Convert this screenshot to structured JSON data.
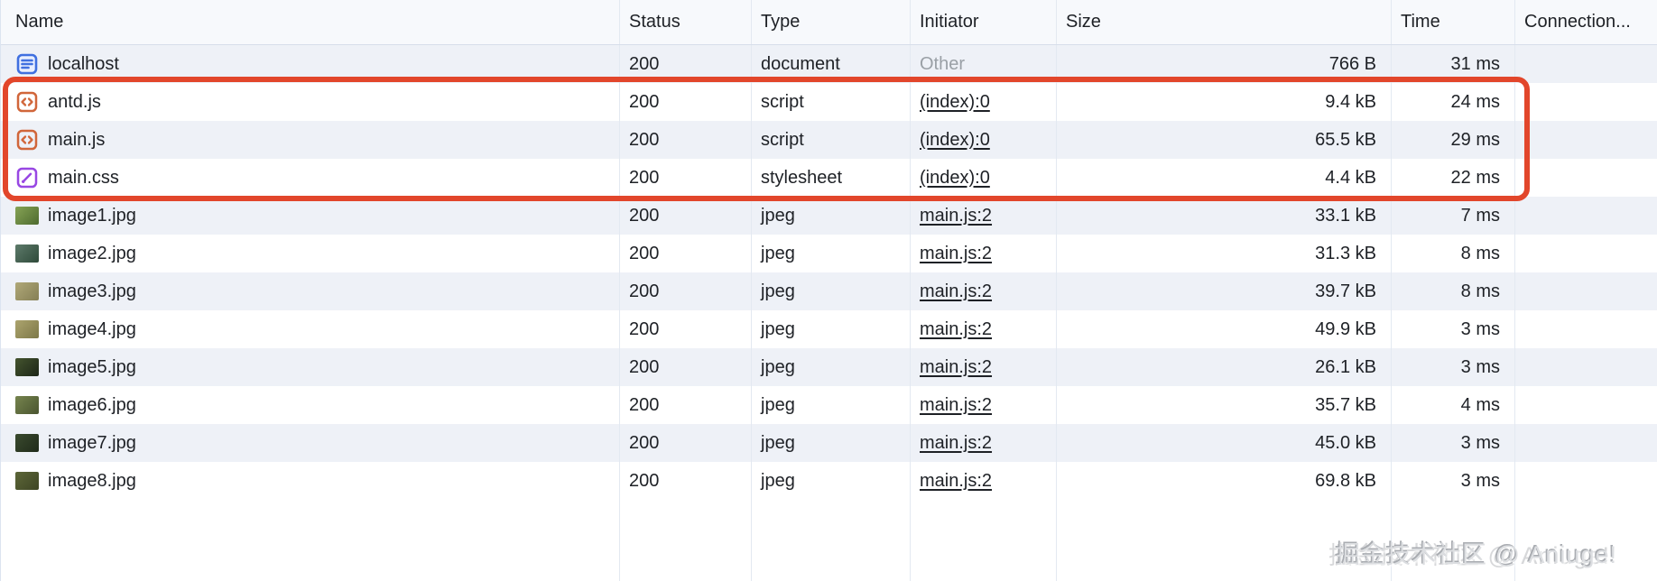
{
  "columns": [
    {
      "id": "name",
      "label": "Name"
    },
    {
      "id": "status",
      "label": "Status"
    },
    {
      "id": "type",
      "label": "Type"
    },
    {
      "id": "initiator",
      "label": "Initiator"
    },
    {
      "id": "size",
      "label": "Size"
    },
    {
      "id": "time",
      "label": "Time"
    },
    {
      "id": "connection",
      "label": "Connection..."
    }
  ],
  "rows": [
    {
      "name": "localhost",
      "icon": "document-icon",
      "status": "200",
      "type": "document",
      "initiator": "Other",
      "initiator_is_link": false,
      "size": "766 B",
      "time": "31 ms",
      "highlighted": false
    },
    {
      "name": "antd.js",
      "icon": "script-icon",
      "status": "200",
      "type": "script",
      "initiator": "(index):0",
      "initiator_is_link": true,
      "size": "9.4 kB",
      "time": "24 ms",
      "highlighted": true
    },
    {
      "name": "main.js",
      "icon": "script-icon",
      "status": "200",
      "type": "script",
      "initiator": "(index):0",
      "initiator_is_link": true,
      "size": "65.5 kB",
      "time": "29 ms",
      "highlighted": true
    },
    {
      "name": "main.css",
      "icon": "stylesheet-icon",
      "status": "200",
      "type": "stylesheet",
      "initiator": "(index):0",
      "initiator_is_link": true,
      "size": "4.4 kB",
      "time": "22 ms",
      "highlighted": true
    },
    {
      "name": "image1.jpg",
      "icon": "image-thumbnail",
      "thumb_colors": [
        "#86a355",
        "#4e6b2f"
      ],
      "status": "200",
      "type": "jpeg",
      "initiator": "main.js:2",
      "initiator_is_link": true,
      "size": "33.1 kB",
      "time": "7 ms",
      "highlighted": false
    },
    {
      "name": "image2.jpg",
      "icon": "image-thumbnail",
      "thumb_colors": [
        "#5d7a6a",
        "#2f4a3a"
      ],
      "status": "200",
      "type": "jpeg",
      "initiator": "main.js:2",
      "initiator_is_link": true,
      "size": "31.3 kB",
      "time": "8 ms",
      "highlighted": false
    },
    {
      "name": "image3.jpg",
      "icon": "image-thumbnail",
      "thumb_colors": [
        "#b0a878",
        "#857f55"
      ],
      "status": "200",
      "type": "jpeg",
      "initiator": "main.js:2",
      "initiator_is_link": true,
      "size": "39.7 kB",
      "time": "8 ms",
      "highlighted": false
    },
    {
      "name": "image4.jpg",
      "icon": "image-thumbnail",
      "thumb_colors": [
        "#aca46e",
        "#7d7848"
      ],
      "status": "200",
      "type": "jpeg",
      "initiator": "main.js:2",
      "initiator_is_link": true,
      "size": "49.9 kB",
      "time": "3 ms",
      "highlighted": false
    },
    {
      "name": "image5.jpg",
      "icon": "image-thumbnail",
      "thumb_colors": [
        "#44542e",
        "#1d2618"
      ],
      "status": "200",
      "type": "jpeg",
      "initiator": "main.js:2",
      "initiator_is_link": true,
      "size": "26.1 kB",
      "time": "3 ms",
      "highlighted": false
    },
    {
      "name": "image6.jpg",
      "icon": "image-thumbnail",
      "thumb_colors": [
        "#76844e",
        "#4a5530"
      ],
      "status": "200",
      "type": "jpeg",
      "initiator": "main.js:2",
      "initiator_is_link": true,
      "size": "35.7 kB",
      "time": "4 ms",
      "highlighted": false
    },
    {
      "name": "image7.jpg",
      "icon": "image-thumbnail",
      "thumb_colors": [
        "#3a4a2e",
        "#202b1a"
      ],
      "status": "200",
      "type": "jpeg",
      "initiator": "main.js:2",
      "initiator_is_link": true,
      "size": "45.0 kB",
      "time": "3 ms",
      "highlighted": false
    },
    {
      "name": "image8.jpg",
      "icon": "image-thumbnail",
      "thumb_colors": [
        "#5c6638",
        "#3e4524"
      ],
      "status": "200",
      "type": "jpeg",
      "initiator": "main.js:2",
      "initiator_is_link": true,
      "size": "69.8 kB",
      "time": "3 ms",
      "highlighted": false
    }
  ],
  "highlight_box": {
    "color": "#e2462b",
    "covers_rows": [
      "antd.js",
      "main.js",
      "main.css"
    ]
  },
  "watermark": {
    "text": "掘金技术社区 @ Aniuge!"
  },
  "colors": {
    "accent_red": "#e2462b",
    "row_stripe": "#eef1f7",
    "grid_line": "#e3e9f1",
    "text": "#1e2126",
    "muted_text": "#9aa0a6",
    "document_icon": "#4070e0",
    "script_icon": "#d1663a",
    "stylesheet_icon": "#9847e3"
  }
}
